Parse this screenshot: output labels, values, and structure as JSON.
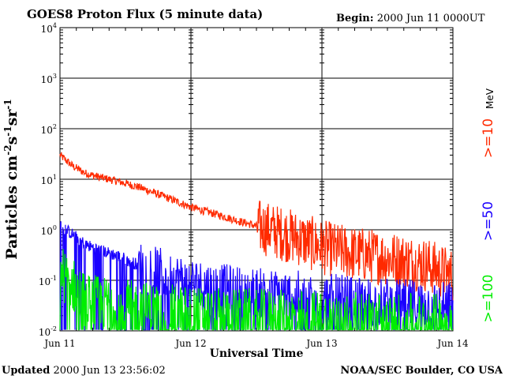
{
  "header": {
    "title": "GOES8 Proton Flux (5 minute data)",
    "begin_label": "Begin:",
    "begin_value": "2000 Jun 11 0000UT"
  },
  "footer": {
    "updated_label": "Updated",
    "updated_value": "2000 Jun 13 23:56:02",
    "credit": "NOAA/SEC Boulder, CO USA"
  },
  "chart_data": {
    "type": "line",
    "title": "GOES8 Proton Flux (5 minute data)",
    "xlabel": "Universal Time",
    "ylabel": "Particles cm-2s-1sr-1",
    "x_tick_labels": [
      "Jun 11",
      "Jun 12",
      "Jun 13",
      "Jun 14"
    ],
    "y_scale": "log",
    "ylim": [
      0.01,
      10000
    ],
    "y_tick_labels": [
      {
        "base": "10",
        "exp": "4"
      },
      {
        "base": "10",
        "exp": "3"
      },
      {
        "base": "10",
        "exp": "2"
      },
      {
        "base": "10",
        "exp": "1"
      },
      {
        "base": "10",
        "exp": "0"
      },
      {
        "base": "10",
        "exp": "-1"
      },
      {
        "base": "10",
        "exp": "-2"
      }
    ],
    "grid": true,
    "legend_position": "right",
    "unit_label": "MeV",
    "series": [
      {
        "name": ">=10",
        "color": "#ff2a00",
        "x_days": [
          0.0,
          0.1,
          0.2,
          0.3,
          0.45,
          0.6,
          0.8,
          1.0,
          1.2,
          1.4,
          1.6,
          1.8,
          2.0,
          2.2,
          2.4,
          2.6,
          2.8,
          3.0
        ],
        "values": [
          30,
          18,
          13,
          11,
          9,
          7,
          4.5,
          2.8,
          2.0,
          1.4,
          1.0,
          0.7,
          0.45,
          0.35,
          0.3,
          0.25,
          0.2,
          0.12
        ]
      },
      {
        "name": ">=50",
        "color": "#1a00ff",
        "x_days": [
          0.0,
          0.1,
          0.2,
          0.3,
          0.45,
          0.6,
          0.8,
          1.0,
          1.2,
          1.4,
          1.6,
          1.8,
          2.0,
          2.2,
          2.4,
          2.6,
          2.8,
          3.0
        ],
        "values": [
          1.2,
          0.8,
          0.5,
          0.4,
          0.3,
          0.2,
          0.13,
          0.09,
          0.07,
          0.06,
          0.055,
          0.05,
          0.045,
          0.04,
          0.038,
          0.035,
          0.032,
          0.03
        ]
      },
      {
        "name": ">=100",
        "color": "#00ee00",
        "x_days": [
          0.0,
          0.1,
          0.2,
          0.3,
          0.45,
          0.6,
          0.8,
          1.0,
          1.2,
          1.4,
          1.6,
          1.8,
          2.0,
          2.2,
          2.4,
          2.6,
          2.8,
          3.0
        ],
        "values": [
          0.15,
          0.08,
          0.04,
          0.035,
          0.03,
          0.028,
          0.025,
          0.022,
          0.02,
          0.02,
          0.019,
          0.018,
          0.018,
          0.017,
          0.017,
          0.016,
          0.016,
          0.015
        ]
      }
    ]
  }
}
